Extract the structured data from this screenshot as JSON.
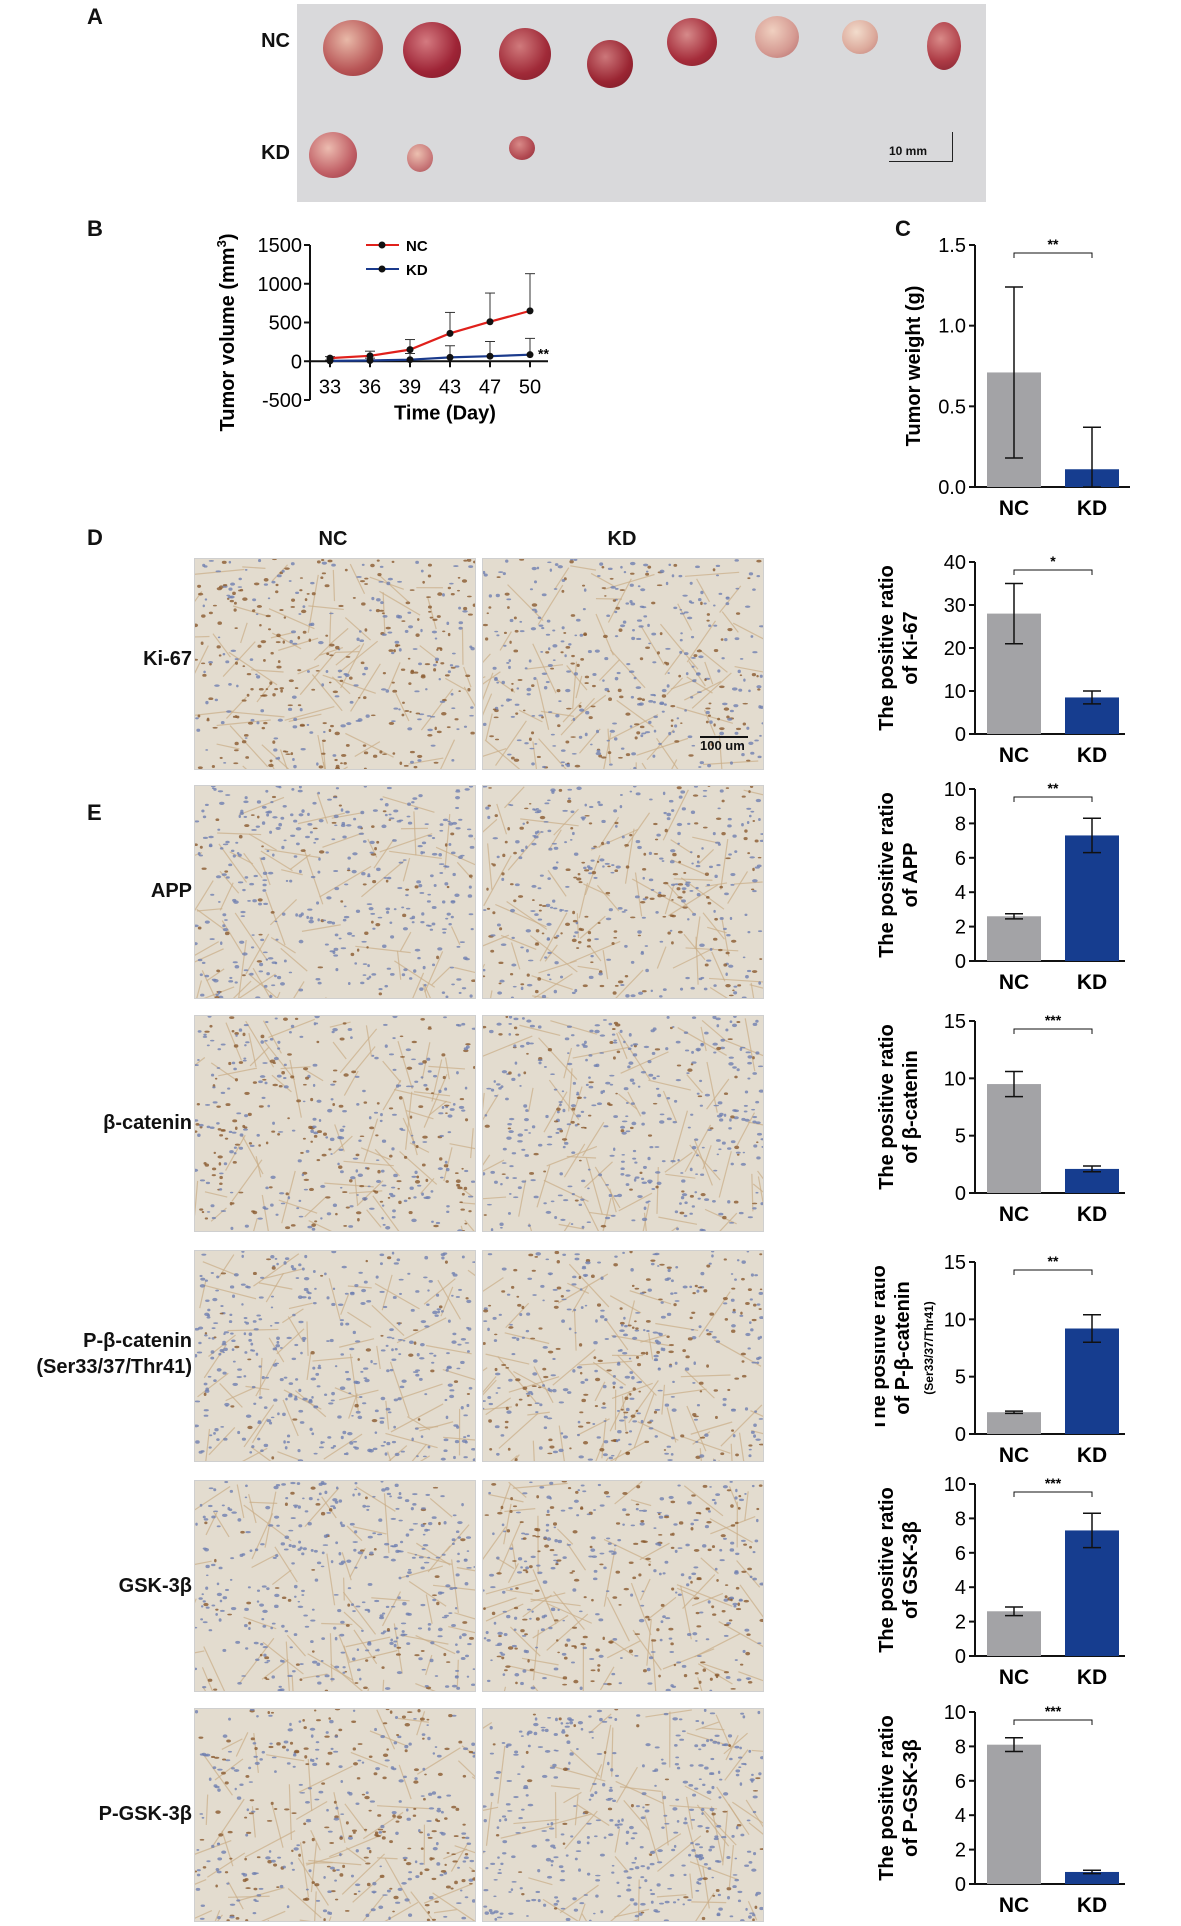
{
  "panel_letters": {
    "a": "A",
    "b": "B",
    "c": "C",
    "d": "D",
    "e": "E"
  },
  "panel_a": {
    "row_labels": [
      "NC",
      "KD"
    ],
    "nc_tumor_count": 8,
    "kd_tumor_count": 3,
    "scale_bar": "10 mm"
  },
  "ihc": {
    "column_labels": [
      "NC",
      "KD"
    ],
    "markers": [
      {
        "label": "Ki-67",
        "label2": "",
        "nc_brown": 0.55,
        "kd_brown": 0.3
      },
      {
        "label": "APP",
        "label2": "",
        "nc_brown": 0.12,
        "kd_brown": 0.4
      },
      {
        "label": "β-catenin",
        "label2": "",
        "nc_brown": 0.45,
        "kd_brown": 0.2
      },
      {
        "label": "P-β-catenin",
        "label2": "(Ser33/37/Thr41)",
        "nc_brown": 0.1,
        "kd_brown": 0.35
      },
      {
        "label": "GSK-3β",
        "label2": "",
        "nc_brown": 0.15,
        "kd_brown": 0.45
      },
      {
        "label": "P-GSK-3β",
        "label2": "",
        "nc_brown": 0.45,
        "kd_brown": 0.1
      }
    ],
    "scale_bar": "100 um",
    "colors": {
      "bg": "#e3dccf",
      "blue_nuclei": "#6f7fb0",
      "brown": "#8a5a2e",
      "tan": "#c9ac86"
    }
  },
  "chart_data": [
    {
      "type": "line",
      "panel": "B",
      "x": [
        33,
        36,
        39,
        43,
        47,
        50
      ],
      "xlabel": "Time (Day)",
      "ylabel": "Tumor volume (mm",
      "ylabel_sup": "3",
      "ylabel_close": ")",
      "yticks": [
        -500,
        0,
        500,
        1000,
        1500
      ],
      "ylim": [
        -500,
        1500
      ],
      "legend_position": "top-left",
      "series": [
        {
          "name": "NC",
          "color": "#e0201b",
          "values": [
            40,
            70,
            150,
            360,
            510,
            650
          ],
          "errors": [
            20,
            60,
            130,
            270,
            370,
            480
          ]
        },
        {
          "name": "KD",
          "color": "#1a3a8c",
          "values": [
            5,
            10,
            20,
            50,
            65,
            85
          ],
          "errors": [
            10,
            30,
            80,
            150,
            190,
            210
          ]
        }
      ],
      "annotation": "**"
    },
    {
      "type": "bar",
      "panel": "C",
      "categories": [
        "NC",
        "KD"
      ],
      "values": [
        0.71,
        0.11
      ],
      "errors": [
        0.53,
        0.26
      ],
      "ylabel": "Tumor weight (g)",
      "ylabel2": "",
      "yticks": [
        "0.0",
        "0.5",
        "1.0",
        "1.5"
      ],
      "ylim": [
        0,
        1.5
      ],
      "significance": "**"
    },
    {
      "type": "bar",
      "panel": "D",
      "categories": [
        "NC",
        "KD"
      ],
      "values": [
        28,
        8.5
      ],
      "errors": [
        7,
        1.5
      ],
      "ylabel": "The positive ratio",
      "ylabel2": "of Ki-67",
      "yticks": [
        "0",
        "10",
        "20",
        "30",
        "40"
      ],
      "ylim": [
        0,
        40
      ],
      "significance": "*"
    },
    {
      "type": "bar",
      "panel": "E-APP",
      "categories": [
        "NC",
        "KD"
      ],
      "values": [
        2.6,
        7.3
      ],
      "errors": [
        0.15,
        1.0
      ],
      "ylabel": "The positive ratio",
      "ylabel2": "of APP",
      "yticks": [
        "0",
        "2",
        "4",
        "6",
        "8",
        "10"
      ],
      "ylim": [
        0,
        10
      ],
      "significance": "**"
    },
    {
      "type": "bar",
      "panel": "E-b-catenin",
      "categories": [
        "NC",
        "KD"
      ],
      "values": [
        9.5,
        2.1
      ],
      "errors": [
        1.1,
        0.25
      ],
      "ylabel": "The positive ratio",
      "ylabel2": "of β-catenin",
      "yticks": [
        "0",
        "5",
        "10",
        "15"
      ],
      "ylim": [
        0,
        15
      ],
      "significance": "***"
    },
    {
      "type": "bar",
      "panel": "E-P-b-catenin",
      "categories": [
        "NC",
        "KD"
      ],
      "values": [
        1.9,
        9.2
      ],
      "errors": [
        0.1,
        1.2
      ],
      "ylabel": "The positive ratio",
      "ylabel2": "of P-β-catenin",
      "ylabel3": "(Ser33/37/Thr41)",
      "yticks": [
        "0",
        "5",
        "10",
        "15"
      ],
      "ylim": [
        0,
        15
      ],
      "significance": "**"
    },
    {
      "type": "bar",
      "panel": "E-GSK-3b",
      "categories": [
        "NC",
        "KD"
      ],
      "values": [
        2.6,
        7.3
      ],
      "errors": [
        0.25,
        1.0
      ],
      "ylabel": "The positive ratio",
      "ylabel2": "of GSK-3β",
      "yticks": [
        "0",
        "2",
        "4",
        "6",
        "8",
        "10"
      ],
      "ylim": [
        0,
        10
      ],
      "significance": "***"
    },
    {
      "type": "bar",
      "panel": "E-P-GSK-3b",
      "categories": [
        "NC",
        "KD"
      ],
      "values": [
        8.1,
        0.7
      ],
      "errors": [
        0.4,
        0.1
      ],
      "ylabel": "The positive ratio",
      "ylabel2": "of P-GSK-3β",
      "yticks": [
        "0",
        "2",
        "4",
        "6",
        "8",
        "10"
      ],
      "ylim": [
        0,
        10
      ],
      "significance": "***"
    }
  ],
  "colors": {
    "nc_bar": "#a3a3a6",
    "kd_bar": "#163d8f"
  }
}
